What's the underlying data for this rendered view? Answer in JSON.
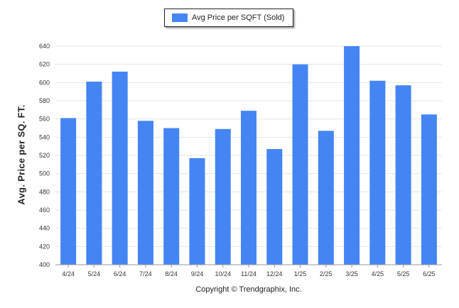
{
  "chart_data": {
    "type": "bar",
    "categories": [
      "4/24",
      "5/24",
      "6/24",
      "7/24",
      "8/24",
      "9/24",
      "10/24",
      "11/24",
      "12/24",
      "1/25",
      "2/25",
      "3/25",
      "4/25",
      "5/25",
      "6/25"
    ],
    "series": [
      {
        "name": "Avg Price per SQFT (Sold)",
        "values": [
          561,
          601,
          612,
          558,
          550,
          517,
          549,
          569,
          527,
          620,
          547,
          640,
          602,
          597,
          565
        ]
      }
    ],
    "ylabel": "Avg. Price per SQ. FT.",
    "xlabel": "",
    "ylim": [
      400,
      640
    ],
    "yticks": [
      400,
      420,
      440,
      460,
      480,
      500,
      520,
      540,
      560,
      580,
      600,
      620,
      640
    ],
    "grid": true,
    "legend_position": "top-center",
    "bar_color": "#4485F3"
  },
  "footer": {
    "copyright": "Copyright © Trendgraphix, Inc."
  }
}
